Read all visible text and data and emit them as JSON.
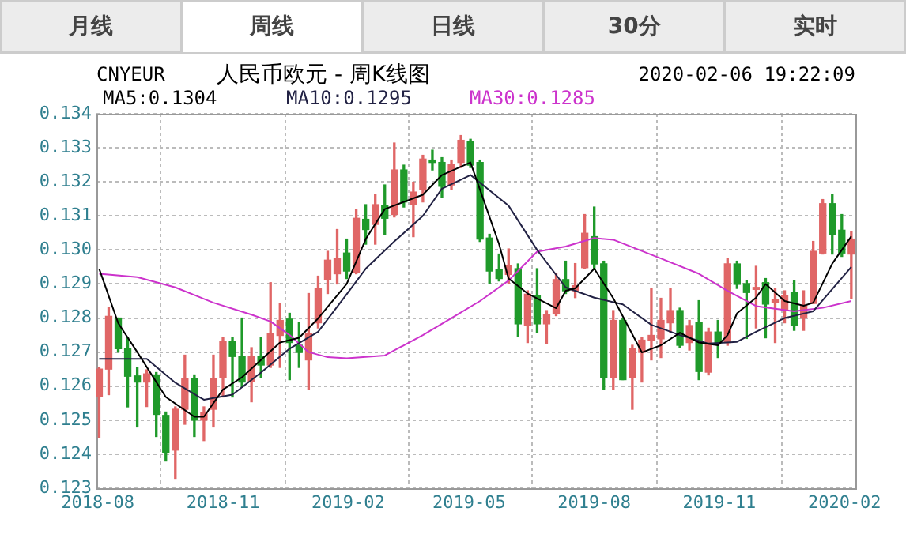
{
  "chart_data": {
    "type": "candlestick",
    "title": "人民币欧元 - 周K线图",
    "subtitle": "CNYEUR",
    "annotations": [
      "月线",
      "周线",
      "日线",
      "30分",
      "实时",
      "2020-02-06 19:22:09"
    ],
    "x": [
      "2018-08-02",
      "2018-08-09",
      "2018-08-16",
      "2018-08-23",
      "2018-08-30",
      "2018-09-06",
      "2018-09-13",
      "2018-09-20",
      "2018-09-27",
      "2018-10-04",
      "2018-10-11",
      "2018-10-18",
      "2018-10-25",
      "2018-11-01",
      "2018-11-08",
      "2018-11-15",
      "2018-11-22",
      "2018-11-29",
      "2018-12-06",
      "2018-12-13",
      "2018-12-20",
      "2018-12-27",
      "2019-01-03",
      "2019-01-10",
      "2019-01-17",
      "2019-01-24",
      "2019-01-31",
      "2019-02-07",
      "2019-02-14",
      "2019-02-21",
      "2019-02-28",
      "2019-03-07",
      "2019-03-14",
      "2019-03-21",
      "2019-03-28",
      "2019-04-04",
      "2019-04-11",
      "2019-04-18",
      "2019-04-25",
      "2019-05-02",
      "2019-05-09",
      "2019-05-16",
      "2019-05-23",
      "2019-05-30",
      "2019-06-06",
      "2019-06-13",
      "2019-06-20",
      "2019-06-27",
      "2019-07-04",
      "2019-07-11",
      "2019-07-18",
      "2019-07-25",
      "2019-08-01",
      "2019-08-08",
      "2019-08-15",
      "2019-08-22",
      "2019-08-29",
      "2019-09-05",
      "2019-09-12",
      "2019-09-19",
      "2019-09-26",
      "2019-10-03",
      "2019-10-10",
      "2019-10-17",
      "2019-10-24",
      "2019-10-31",
      "2019-11-07",
      "2019-11-14",
      "2019-11-21",
      "2019-11-28",
      "2019-12-05",
      "2019-12-12",
      "2019-12-19",
      "2019-12-26",
      "2020-01-02",
      "2020-01-09",
      "2020-01-16",
      "2020-01-23",
      "2020-01-30",
      "2020-02-06"
    ],
    "ohlc": [
      [
        0.1257,
        0.12655,
        0.1245,
        0.1265
      ],
      [
        0.1265,
        0.1283,
        0.12575,
        0.12805
      ],
      [
        0.128,
        0.128,
        0.127,
        0.1271
      ],
      [
        0.1271,
        0.12742,
        0.12539,
        0.12629
      ],
      [
        0.1263,
        0.12655,
        0.1248,
        0.12612
      ],
      [
        0.12612,
        0.12648,
        0.1254,
        0.12636
      ],
      [
        0.12633,
        0.1264,
        0.12452,
        0.12517
      ],
      [
        0.12514,
        0.12524,
        0.1238,
        0.12406
      ],
      [
        0.12412,
        0.12539,
        0.12329,
        0.12532
      ],
      [
        0.12532,
        0.12691,
        0.12488,
        0.12623
      ],
      [
        0.12623,
        0.12633,
        0.12452,
        0.125
      ],
      [
        0.125,
        0.12539,
        0.1244,
        0.12522
      ],
      [
        0.12532,
        0.12691,
        0.1248,
        0.12623
      ],
      [
        0.12626,
        0.12742,
        0.12568,
        0.12732
      ],
      [
        0.12732,
        0.12742,
        0.12568,
        0.12687
      ],
      [
        0.12687,
        0.128,
        0.12597,
        0.12612
      ],
      [
        0.12614,
        0.12713,
        0.12554,
        0.12688
      ],
      [
        0.12688,
        0.12742,
        0.12626,
        0.12662
      ],
      [
        0.12662,
        0.12904,
        0.12655,
        0.12754
      ],
      [
        0.12749,
        0.12843,
        0.12655,
        0.12793
      ],
      [
        0.12797,
        0.12814,
        0.12619,
        0.12728
      ],
      [
        0.1272,
        0.12786,
        0.12655,
        0.12699
      ],
      [
        0.12677,
        0.12872,
        0.1259,
        0.12754
      ],
      [
        0.12786,
        0.12923,
        0.12771,
        0.12887
      ],
      [
        0.12912,
        0.12996,
        0.12872,
        0.1297
      ],
      [
        0.1293,
        0.1306,
        0.129,
        0.12974
      ],
      [
        0.12991,
        0.13032,
        0.12916,
        0.12938
      ],
      [
        0.12933,
        0.13119,
        0.1293,
        0.13093
      ],
      [
        0.1309,
        0.13133,
        0.13017,
        0.1306
      ],
      [
        0.13075,
        0.13162,
        0.13017,
        0.13133
      ],
      [
        0.1313,
        0.13191,
        0.13046,
        0.13093
      ],
      [
        0.13104,
        0.13314,
        0.13097,
        0.13235
      ],
      [
        0.13235,
        0.13249,
        0.13126,
        0.13141
      ],
      [
        0.13133,
        0.13199,
        0.13039,
        0.1317
      ],
      [
        0.13177,
        0.13278,
        0.13141,
        0.13267
      ],
      [
        0.13264,
        0.13293,
        0.13235,
        0.13257
      ],
      [
        0.13257,
        0.13271,
        0.13155,
        0.13187
      ],
      [
        0.13191,
        0.13264,
        0.13177,
        0.13252
      ],
      [
        0.13257,
        0.13336,
        0.13242,
        0.13322
      ],
      [
        0.13319,
        0.13325,
        0.13242,
        0.13249
      ],
      [
        0.13257,
        0.13264,
        0.13025,
        0.13032
      ],
      [
        0.13035,
        0.13046,
        0.12901,
        0.12938
      ],
      [
        0.12942,
        0.12988,
        0.12909,
        0.12916
      ],
      [
        0.12928,
        0.13003,
        0.12901,
        0.12955
      ],
      [
        0.12945,
        0.12959,
        0.12745,
        0.12783
      ],
      [
        0.12778,
        0.1288,
        0.12728,
        0.1287
      ],
      [
        0.12865,
        0.12945,
        0.12757,
        0.12783
      ],
      [
        0.12783,
        0.12822,
        0.12725,
        0.1281
      ],
      [
        0.12812,
        0.1293,
        0.12807,
        0.12913
      ],
      [
        0.12913,
        0.12967,
        0.12872,
        0.1288
      ],
      [
        0.1288,
        0.1296,
        0.1286,
        0.12895
      ],
      [
        0.12948,
        0.13104,
        0.12945,
        0.13049
      ],
      [
        0.13039,
        0.13126,
        0.12942,
        0.12959
      ],
      [
        0.12959,
        0.12967,
        0.1259,
        0.12626
      ],
      [
        0.12626,
        0.12822,
        0.1259,
        0.12793
      ],
      [
        0.12793,
        0.128,
        0.12619,
        0.12619
      ],
      [
        0.12626,
        0.1272,
        0.12532,
        0.1271
      ],
      [
        0.12699,
        0.12742,
        0.12612,
        0.12735
      ],
      [
        0.12735,
        0.12887,
        0.12677,
        0.12749
      ],
      [
        0.12739,
        0.12858,
        0.12684,
        0.12793
      ],
      [
        0.12786,
        0.12887,
        0.12757,
        0.12822
      ],
      [
        0.12822,
        0.12829,
        0.12713,
        0.1272
      ],
      [
        0.12728,
        0.12793,
        0.12706,
        0.12778
      ],
      [
        0.12786,
        0.12851,
        0.12619,
        0.12643
      ],
      [
        0.12641,
        0.1277,
        0.12633,
        0.12759
      ],
      [
        0.12759,
        0.12793,
        0.12684,
        0.12728
      ],
      [
        0.12728,
        0.12974,
        0.1272,
        0.12959
      ],
      [
        0.12959,
        0.12967,
        0.12887,
        0.12899
      ],
      [
        0.12901,
        0.1291,
        0.1274,
        0.12875
      ],
      [
        0.12884,
        0.12952,
        0.12771,
        0.1289
      ],
      [
        0.12904,
        0.12916,
        0.12742,
        0.12841
      ],
      [
        0.12846,
        0.12887,
        0.12728,
        0.12855
      ],
      [
        0.12822,
        0.1288,
        0.12786,
        0.12865
      ],
      [
        0.12875,
        0.12909,
        0.12764,
        0.12778
      ],
      [
        0.128,
        0.1288,
        0.12764,
        0.12836
      ],
      [
        0.12843,
        0.13025,
        0.12843,
        0.12996
      ],
      [
        0.12991,
        0.13148,
        0.12988,
        0.13136
      ],
      [
        0.13136,
        0.13162,
        0.12988,
        0.13046
      ],
      [
        0.13058,
        0.13104,
        0.12981,
        0.12991
      ],
      [
        0.12988,
        0.13054,
        0.12858,
        0.13032
      ]
    ],
    "series": [
      {
        "name": "MA5:0.1304",
        "type": "line",
        "color": "#000000",
        "x": [
          "2018-08-02",
          "2018-08-16",
          "2018-08-30",
          "2018-09-20",
          "2018-10-11",
          "2018-10-18",
          "2018-11-01",
          "2018-11-15",
          "2018-11-29",
          "2018-12-13",
          "2018-12-27",
          "2019-01-10",
          "2019-01-31",
          "2019-02-14",
          "2019-02-28",
          "2019-03-28",
          "2019-04-11",
          "2019-05-02",
          "2019-05-09",
          "2019-05-23",
          "2019-05-30",
          "2019-06-13",
          "2019-07-04",
          "2019-07-11",
          "2019-07-18",
          "2019-08-01",
          "2019-08-15",
          "2019-09-05",
          "2019-09-19",
          "2019-10-03",
          "2019-10-17",
          "2019-10-31",
          "2019-11-07",
          "2019-11-14",
          "2019-11-28",
          "2019-12-05",
          "2019-12-19",
          "2020-01-02",
          "2020-01-09",
          "2020-01-23",
          "2020-02-06"
        ],
        "values": [
          0.12945,
          0.12785,
          0.127,
          0.12568,
          0.1251,
          0.1251,
          0.1259,
          0.12626,
          0.12677,
          0.12728,
          0.12742,
          0.12799,
          0.129,
          0.13032,
          0.1312,
          0.13162,
          0.1322,
          0.13257,
          0.13177,
          0.13017,
          0.12916,
          0.12872,
          0.12829,
          0.1288,
          0.12887,
          0.12945,
          0.12858,
          0.12699,
          0.1272,
          0.12757,
          0.12728,
          0.1272,
          0.1275,
          0.12814,
          0.1286,
          0.129,
          0.1285,
          0.12836,
          0.12845,
          0.1296,
          0.1304
        ]
      },
      {
        "name": "MA10:0.1295",
        "type": "line",
        "color": "#222244",
        "x": [
          "2018-08-02",
          "2018-09-06",
          "2018-09-27",
          "2018-10-18",
          "2018-11-08",
          "2018-11-29",
          "2018-12-20",
          "2019-01-10",
          "2019-01-31",
          "2019-02-14",
          "2019-03-07",
          "2019-03-28",
          "2019-04-11",
          "2019-05-02",
          "2019-05-30",
          "2019-06-20",
          "2019-07-11",
          "2019-08-01",
          "2019-08-22",
          "2019-09-12",
          "2019-10-03",
          "2019-10-24",
          "2019-11-14",
          "2019-11-28",
          "2019-12-19",
          "2020-01-09",
          "2020-02-06"
        ],
        "values": [
          0.1268,
          0.1268,
          0.1261,
          0.1256,
          0.12575,
          0.1264,
          0.1271,
          0.1276,
          0.1287,
          0.12945,
          0.13025,
          0.131,
          0.1318,
          0.1322,
          0.1313,
          0.13,
          0.1289,
          0.1286,
          0.1284,
          0.1278,
          0.1275,
          0.12725,
          0.1273,
          0.1276,
          0.128,
          0.1282,
          0.1295
        ]
      },
      {
        "name": "MA30:0.1285",
        "type": "line",
        "color": "#cc33cc",
        "x": [
          "2018-08-02",
          "2018-08-30",
          "2018-09-27",
          "2018-10-25",
          "2018-11-22",
          "2018-12-06",
          "2018-12-20",
          "2019-01-03",
          "2019-01-17",
          "2019-01-31",
          "2019-02-28",
          "2019-03-28",
          "2019-04-18",
          "2019-05-09",
          "2019-05-30",
          "2019-06-20",
          "2019-07-11",
          "2019-08-01",
          "2019-08-15",
          "2019-09-19",
          "2019-10-17",
          "2019-11-07",
          "2019-11-28",
          "2019-12-26",
          "2020-01-16",
          "2020-02-06"
        ],
        "values": [
          0.1293,
          0.1292,
          0.1289,
          0.12845,
          0.1281,
          0.1279,
          0.1275,
          0.127,
          0.12685,
          0.12682,
          0.1269,
          0.1275,
          0.128,
          0.1285,
          0.1291,
          0.12995,
          0.1301,
          0.13035,
          0.1303,
          0.12975,
          0.1293,
          0.1288,
          0.12835,
          0.1282,
          0.1283,
          0.1285
        ]
      }
    ],
    "xlim": [
      "2018-07-31",
      "2020-02-09"
    ],
    "xticks": [
      "2018-08",
      "2018-11",
      "2019-02",
      "2019-05",
      "2019-08",
      "2019-11",
      "2020-02"
    ],
    "ylim": [
      0.123,
      0.134
    ],
    "yticks": [
      0.123,
      0.124,
      0.125,
      0.126,
      0.127,
      0.128,
      0.129,
      {
        "value": 0.13,
        "label": "0.130"
      },
      0.131,
      0.132,
      0.133,
      0.134
    ],
    "grid": true,
    "legend": "top",
    "marker": "none",
    "line_style": "solid"
  }
}
